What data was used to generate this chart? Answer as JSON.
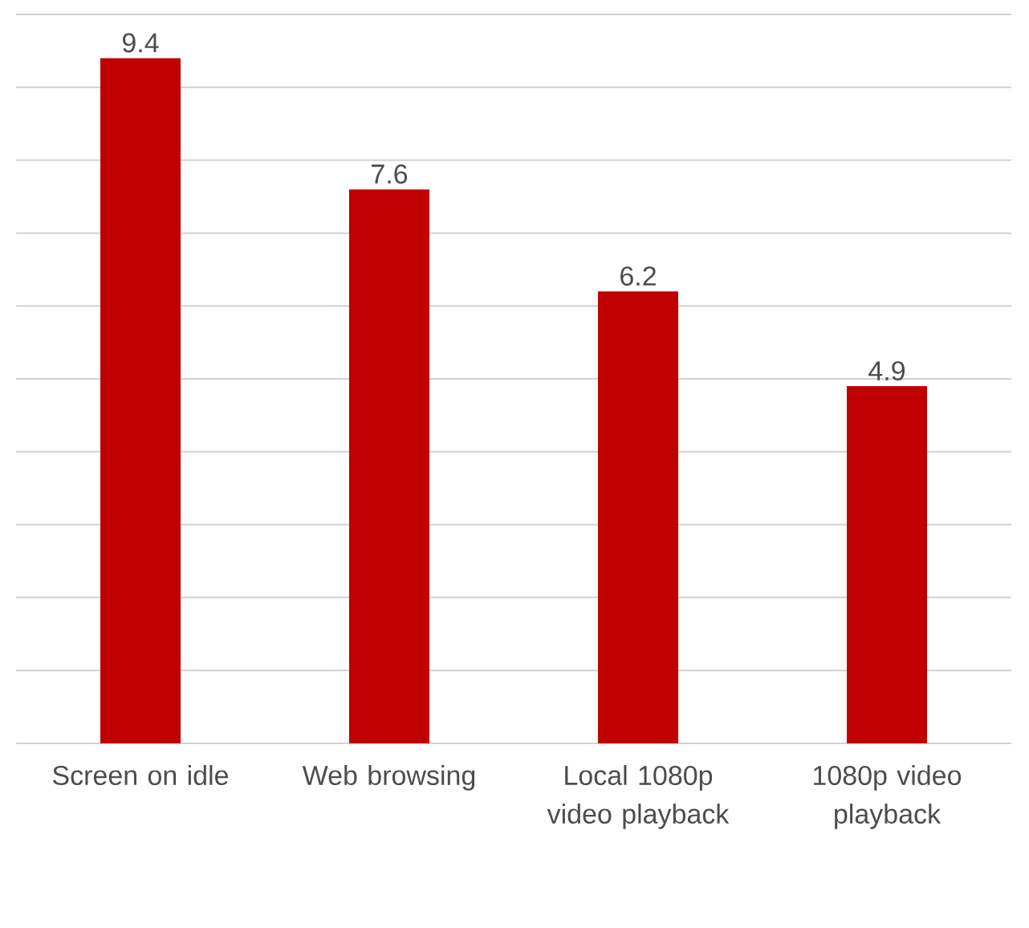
{
  "chart_data": {
    "type": "bar",
    "categories": [
      "Screen on idle",
      "Web browsing",
      "Local 1080p video playback",
      "1080p video playback"
    ],
    "values": [
      9.4,
      7.6,
      6.2,
      4.9
    ],
    "color": "#c00000",
    "ylim": [
      0,
      10
    ],
    "yticks": [
      {
        "value": 0,
        "label": null
      },
      {
        "value": 1,
        "label": null
      },
      {
        "value": 2,
        "label": null
      },
      {
        "value": 3,
        "label": null
      },
      {
        "value": 4,
        "label": null
      },
      {
        "value": 5,
        "label": null
      },
      {
        "value": 6,
        "label": null
      },
      {
        "value": 7,
        "label": null
      },
      {
        "value": 8,
        "label": null
      },
      {
        "value": 9,
        "label": null
      },
      {
        "value": 10,
        "label": null
      }
    ],
    "grid": "y",
    "tick_labels": "x",
    "data_labels": true
  }
}
